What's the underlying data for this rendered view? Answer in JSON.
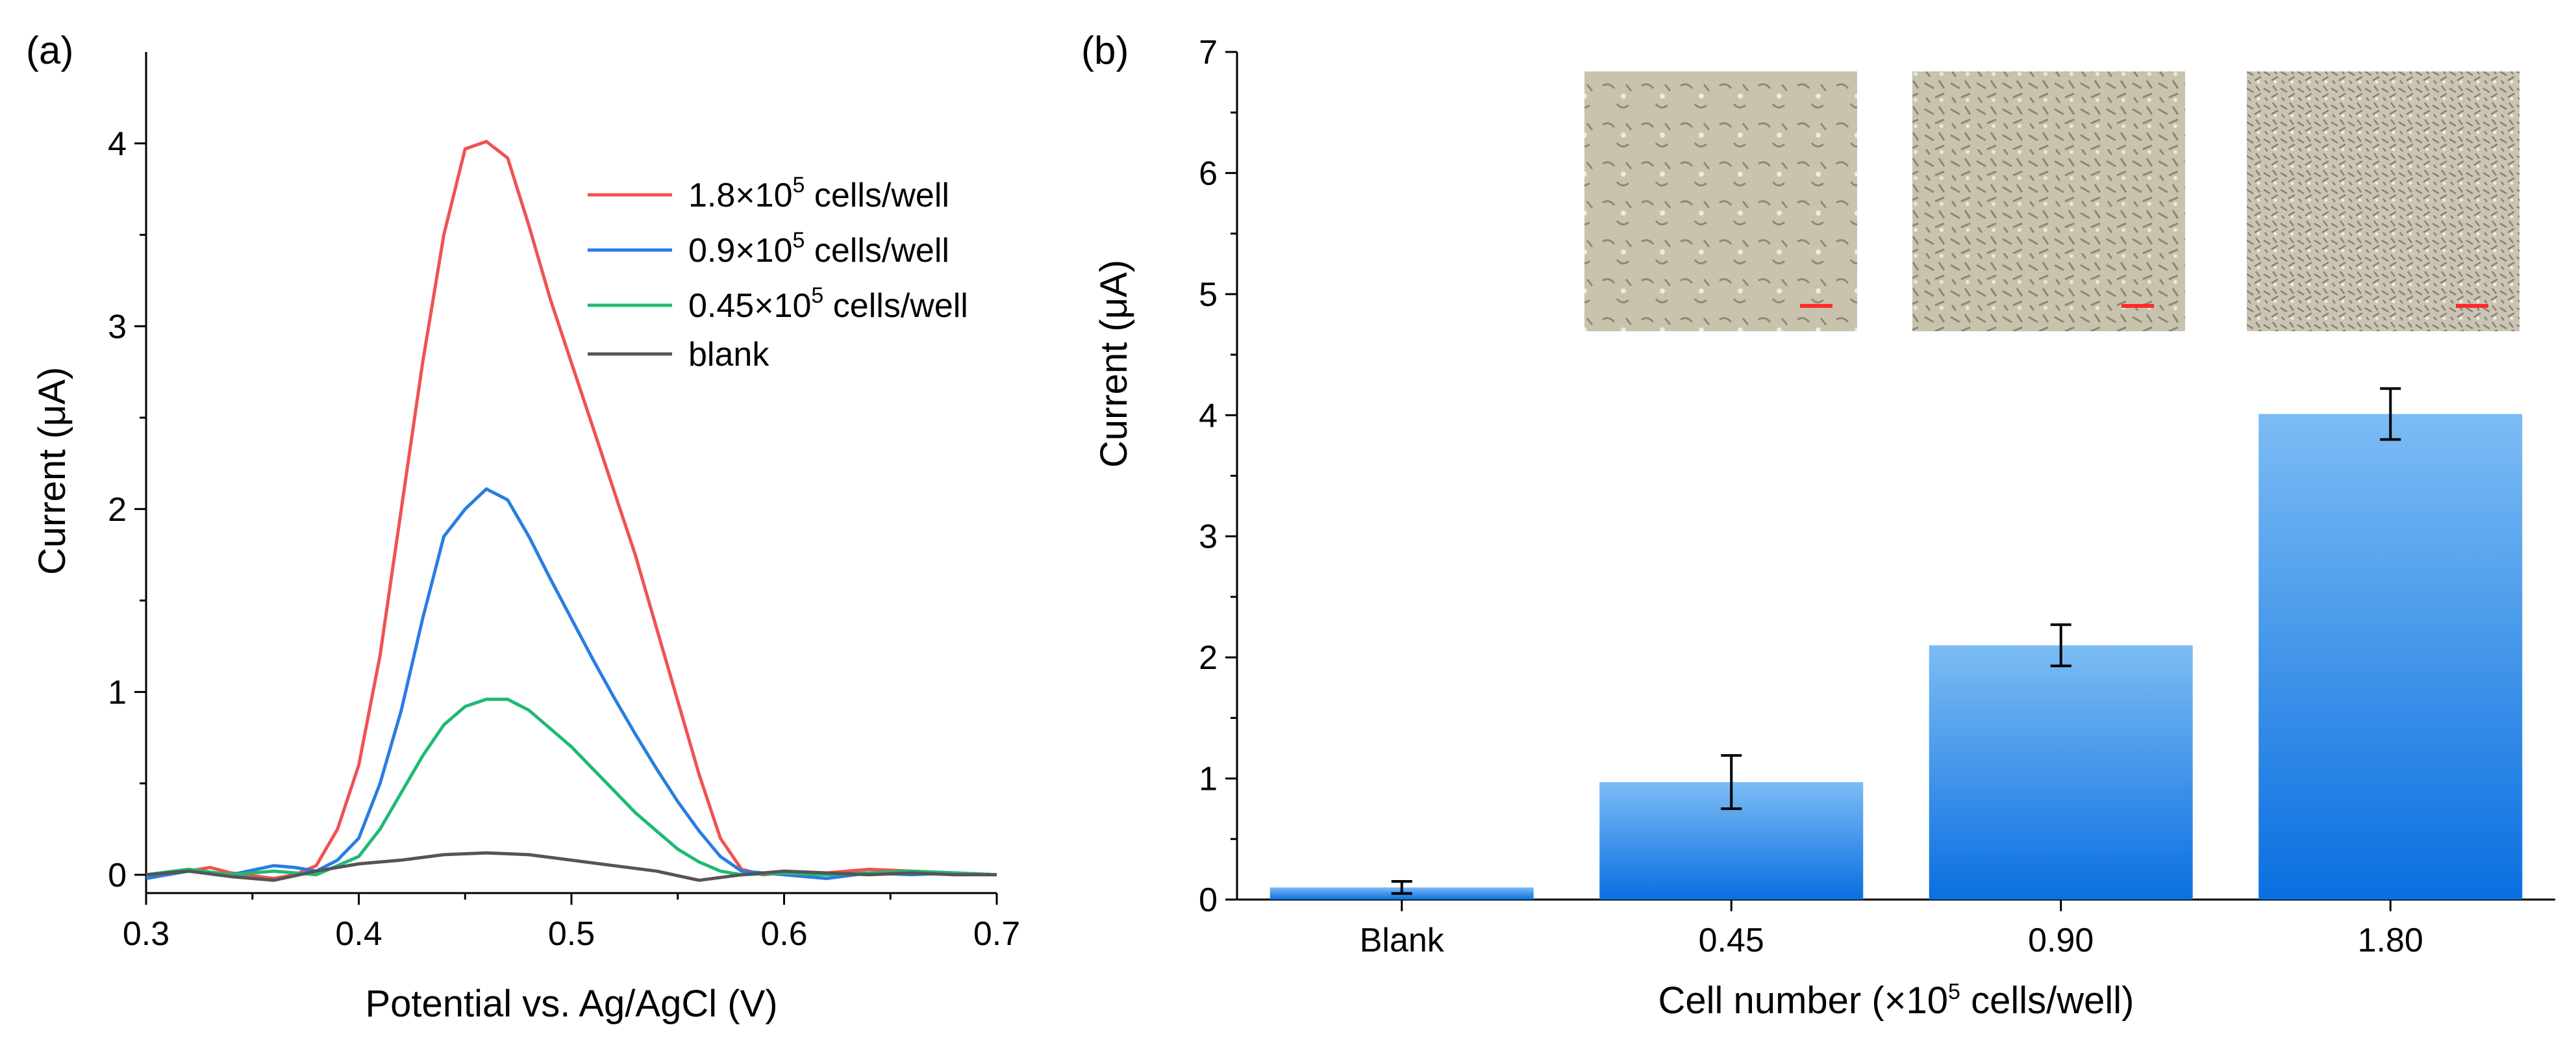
{
  "chart_data": [
    {
      "panel": "(a)",
      "type": "line",
      "xlabel": "Potential vs. Ag/AgCl (V)",
      "ylabel": "Current (μA)",
      "xlim": [
        0.3,
        0.7
      ],
      "ylim": [
        -0.1,
        4.5
      ],
      "x_ticks": [
        "0.3",
        "0.4",
        "0.5",
        "0.6",
        "0.7"
      ],
      "y_ticks": [
        "0",
        "1",
        "2",
        "3",
        "4"
      ],
      "legend": {
        "placement": "top-right"
      },
      "series": [
        {
          "name_prefix": "1.8×10",
          "name_sup": "5",
          "name_suffix": " cells/well",
          "color": "#f05252",
          "x": [
            0.3,
            0.32,
            0.33,
            0.34,
            0.36,
            0.37,
            0.38,
            0.39,
            0.4,
            0.41,
            0.42,
            0.43,
            0.44,
            0.45,
            0.46,
            0.47,
            0.48,
            0.49,
            0.5,
            0.51,
            0.52,
            0.53,
            0.54,
            0.55,
            0.56,
            0.57,
            0.58,
            0.59,
            0.6,
            0.62,
            0.64,
            0.66,
            0.68,
            0.7
          ],
          "y": [
            0.0,
            0.02,
            0.04,
            0.01,
            -0.02,
            0.0,
            0.05,
            0.25,
            0.6,
            1.2,
            2.0,
            2.8,
            3.5,
            3.97,
            4.01,
            3.92,
            3.55,
            3.15,
            2.8,
            2.45,
            2.1,
            1.75,
            1.35,
            0.95,
            0.55,
            0.2,
            0.03,
            0.0,
            0.01,
            0.01,
            0.03,
            0.02,
            0.01,
            0.0
          ]
        },
        {
          "name_prefix": "0.9×10",
          "name_sup": "5",
          "name_suffix": " cells/well",
          "color": "#2a7de1",
          "x": [
            0.3,
            0.32,
            0.34,
            0.36,
            0.37,
            0.38,
            0.39,
            0.4,
            0.41,
            0.42,
            0.43,
            0.44,
            0.45,
            0.46,
            0.47,
            0.48,
            0.49,
            0.5,
            0.51,
            0.52,
            0.53,
            0.54,
            0.55,
            0.56,
            0.57,
            0.58,
            0.6,
            0.62,
            0.64,
            0.66,
            0.68,
            0.7
          ],
          "y": [
            -0.02,
            0.02,
            0.0,
            0.05,
            0.04,
            0.02,
            0.08,
            0.2,
            0.5,
            0.9,
            1.4,
            1.85,
            2.0,
            2.11,
            2.05,
            1.85,
            1.62,
            1.4,
            1.18,
            0.97,
            0.77,
            0.58,
            0.4,
            0.24,
            0.1,
            0.02,
            0.0,
            -0.02,
            0.01,
            0.0,
            0.01,
            0.0
          ]
        },
        {
          "name_prefix": "0.45×10",
          "name_sup": "5",
          "name_suffix": " cells/well",
          "color": "#1fba74",
          "x": [
            0.3,
            0.32,
            0.34,
            0.36,
            0.38,
            0.39,
            0.4,
            0.41,
            0.42,
            0.43,
            0.44,
            0.45,
            0.46,
            0.47,
            0.48,
            0.49,
            0.5,
            0.51,
            0.52,
            0.53,
            0.54,
            0.55,
            0.56,
            0.57,
            0.58,
            0.6,
            0.62,
            0.64,
            0.66,
            0.68,
            0.7
          ],
          "y": [
            0.0,
            0.03,
            0.0,
            0.02,
            0.0,
            0.05,
            0.1,
            0.25,
            0.45,
            0.65,
            0.82,
            0.92,
            0.96,
            0.96,
            0.9,
            0.8,
            0.7,
            0.58,
            0.46,
            0.34,
            0.24,
            0.14,
            0.07,
            0.02,
            0.0,
            0.01,
            0.0,
            0.01,
            0.02,
            0.01,
            0.0
          ]
        },
        {
          "name": "blank",
          "color": "#555555",
          "x": [
            0.3,
            0.32,
            0.34,
            0.36,
            0.38,
            0.4,
            0.42,
            0.44,
            0.46,
            0.48,
            0.5,
            0.52,
            0.54,
            0.56,
            0.58,
            0.6,
            0.62,
            0.64,
            0.66,
            0.68,
            0.7
          ],
          "y": [
            0.0,
            0.02,
            -0.01,
            -0.03,
            0.02,
            0.06,
            0.08,
            0.11,
            0.12,
            0.11,
            0.08,
            0.05,
            0.02,
            -0.03,
            0.0,
            0.02,
            0.01,
            0.0,
            0.01,
            0.0,
            0.0
          ]
        }
      ]
    },
    {
      "panel": "(b)",
      "type": "bar",
      "xlabel_prefix": "Cell number (×10",
      "xlabel_sup": "5",
      "xlabel_suffix": " cells/well)",
      "ylabel": "Current (μA)",
      "ylim": [
        0,
        7
      ],
      "y_ticks": [
        "0",
        "1",
        "2",
        "3",
        "4",
        "5",
        "6",
        "7"
      ],
      "categories": [
        "Blank",
        "0.45",
        "0.90",
        "1.80"
      ],
      "values": [
        0.1,
        0.97,
        2.1,
        4.01
      ],
      "errors": [
        0.05,
        0.22,
        0.17,
        0.21
      ],
      "bar_color_top": "#7cbcf4",
      "bar_color_bottom": "#0a6fe0",
      "insets": [
        "micrograph-low-density",
        "micrograph-medium-density",
        "micrograph-high-density"
      ],
      "scale_bar_color": "#ff2a2a"
    }
  ]
}
